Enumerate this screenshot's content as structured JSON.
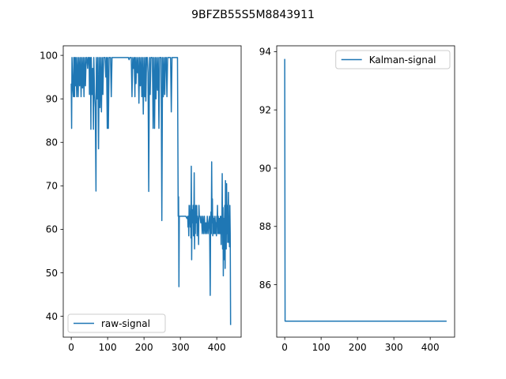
{
  "figure": {
    "title": "9BFZB55S5M8843911"
  },
  "chart_data": [
    {
      "type": "line",
      "xlim": [
        -22,
        467
      ],
      "ylim": [
        35.2,
        102.2
      ],
      "xticks": [
        0,
        100,
        200,
        300,
        400
      ],
      "yticks": [
        40,
        50,
        60,
        70,
        80,
        90,
        100
      ],
      "legend_position": "lower-left",
      "series": [
        {
          "name": "raw-signal",
          "color": "#1f77b4",
          "points": [
            [
              0,
              93.5
            ],
            [
              1,
              83.2
            ],
            [
              2,
              99.5
            ],
            [
              4,
              93.0
            ],
            [
              6,
              90.5
            ],
            [
              7,
              99.5
            ],
            [
              9,
              90.5
            ],
            [
              10,
              99.5
            ],
            [
              12,
              93.0
            ],
            [
              13,
              99.5
            ],
            [
              15,
              90.5
            ],
            [
              17,
              99.5
            ],
            [
              19,
              90.5
            ],
            [
              21,
              99.5
            ],
            [
              23,
              93.0
            ],
            [
              25,
              99.5
            ],
            [
              27,
              90.5
            ],
            [
              29,
              99.5
            ],
            [
              31,
              92.5
            ],
            [
              33,
              99.5
            ],
            [
              35,
              90.5
            ],
            [
              37,
              99.5
            ],
            [
              39,
              93.0
            ],
            [
              41,
              99.5
            ],
            [
              43,
              99.5
            ],
            [
              45,
              97.0
            ],
            [
              47,
              99.5
            ],
            [
              49,
              99.5
            ],
            [
              50,
              91.0
            ],
            [
              52,
              99.5
            ],
            [
              53,
              96.0
            ],
            [
              54,
              83.0
            ],
            [
              55,
              99.5
            ],
            [
              57,
              91.0
            ],
            [
              59,
              97.0
            ],
            [
              61,
              83.0
            ],
            [
              62,
              99.5
            ],
            [
              64,
              91.5
            ],
            [
              66,
              88.0
            ],
            [
              68,
              68.8
            ],
            [
              69,
              99.5
            ],
            [
              71,
              90.0
            ],
            [
              73,
              99.5
            ],
            [
              75,
              78.5
            ],
            [
              77,
              99.5
            ],
            [
              79,
              88.0
            ],
            [
              81,
              99.5
            ],
            [
              83,
              87.0
            ],
            [
              85,
              99.5
            ],
            [
              87,
              91.0
            ],
            [
              89,
              99.5
            ],
            [
              91,
              99.5
            ],
            [
              93,
              99.5
            ],
            [
              95,
              95.0
            ],
            [
              97,
              99.5
            ],
            [
              99,
              83.2
            ],
            [
              100,
              99.5
            ],
            [
              102,
              83.2
            ],
            [
              104,
              99.5
            ],
            [
              106,
              99.5
            ],
            [
              108,
              99.5
            ],
            [
              110,
              90.5
            ],
            [
              112,
              99.5
            ],
            [
              115,
              99.5
            ],
            [
              118,
              99.5
            ],
            [
              121,
              99.5
            ],
            [
              124,
              99.5
            ],
            [
              127,
              99.5
            ],
            [
              130,
              99.5
            ],
            [
              133,
              99.5
            ],
            [
              136,
              99.5
            ],
            [
              139,
              99.5
            ],
            [
              142,
              99.5
            ],
            [
              145,
              99.5
            ],
            [
              148,
              99.5
            ],
            [
              151,
              99.5
            ],
            [
              154,
              99.5
            ],
            [
              157,
              99.5
            ],
            [
              159,
              99.0
            ],
            [
              161,
              99.5
            ],
            [
              163,
              99.5
            ],
            [
              165,
              99.5
            ],
            [
              167,
              90.5
            ],
            [
              169,
              99.5
            ],
            [
              171,
              97.0
            ],
            [
              173,
              99.5
            ],
            [
              175,
              90.5
            ],
            [
              176,
              99.5
            ],
            [
              178,
              93.5
            ],
            [
              180,
              99.5
            ],
            [
              182,
              96.0
            ],
            [
              184,
              99.5
            ],
            [
              186,
              89.0
            ],
            [
              188,
              99.5
            ],
            [
              190,
              93.0
            ],
            [
              192,
              99.5
            ],
            [
              194,
              90.5
            ],
            [
              196,
              99.5
            ],
            [
              198,
              86.5
            ],
            [
              200,
              99.5
            ],
            [
              202,
              90.5
            ],
            [
              204,
              99.5
            ],
            [
              205,
              89.5
            ],
            [
              207,
              99.5
            ],
            [
              209,
              99.5
            ],
            [
              211,
              96.0
            ],
            [
              213,
              68.7
            ],
            [
              215,
              99.5
            ],
            [
              217,
              91.0
            ],
            [
              219,
              99.5
            ],
            [
              221,
              99.5
            ],
            [
              223,
              99.5
            ],
            [
              225,
              83.2
            ],
            [
              227,
              99.5
            ],
            [
              229,
              83.2
            ],
            [
              231,
              99.5
            ],
            [
              233,
              90.0
            ],
            [
              235,
              99.5
            ],
            [
              237,
              92.0
            ],
            [
              239,
              99.5
            ],
            [
              241,
              83.2
            ],
            [
              243,
              99.5
            ],
            [
              245,
              99.5
            ],
            [
              247,
              99.5
            ],
            [
              249,
              62.0
            ],
            [
              251,
              99.5
            ],
            [
              253,
              90.5
            ],
            [
              255,
              99.5
            ],
            [
              257,
              91.0
            ],
            [
              259,
              99.5
            ],
            [
              261,
              99.5
            ],
            [
              263,
              90.5
            ],
            [
              265,
              99.5
            ],
            [
              267,
              99.5
            ],
            [
              269,
              99.5
            ],
            [
              271,
              99.5
            ],
            [
              273,
              99.5
            ],
            [
              275,
              87.0
            ],
            [
              277,
              99.5
            ],
            [
              280,
              99.5
            ],
            [
              283,
              99.5
            ],
            [
              286,
              99.5
            ],
            [
              289,
              99.5
            ],
            [
              292,
              99.5
            ],
            [
              294,
              63.0
            ],
            [
              295,
              67.5
            ],
            [
              296,
              46.8
            ],
            [
              297,
              63.0
            ],
            [
              300,
              63.0
            ],
            [
              303,
              63.0
            ],
            [
              306,
              63.0
            ],
            [
              309,
              63.0
            ],
            [
              312,
              63.0
            ],
            [
              315,
              63.0
            ],
            [
              318,
              62.5
            ],
            [
              320,
              63.0
            ],
            [
              321,
              60.5
            ],
            [
              322,
              63.0
            ],
            [
              323,
              58.5
            ],
            [
              324,
              65.5
            ],
            [
              325,
              62.5
            ],
            [
              326,
              63.0
            ],
            [
              327,
              60.5
            ],
            [
              328,
              65.5
            ],
            [
              329,
              58.0
            ],
            [
              330,
              74.5
            ],
            [
              331,
              53.0
            ],
            [
              332,
              63.0
            ],
            [
              333,
              64.5
            ],
            [
              334,
              61.5
            ],
            [
              335,
              65.5
            ],
            [
              336,
              58.5
            ],
            [
              337,
              62.5
            ],
            [
              338,
              73.0
            ],
            [
              339,
              55.5
            ],
            [
              340,
              63.0
            ],
            [
              341,
              59.0
            ],
            [
              342,
              65.5
            ],
            [
              343,
              61.5
            ],
            [
              344,
              62.5
            ],
            [
              345,
              65.5
            ],
            [
              346,
              58.5
            ],
            [
              347,
              63.0
            ],
            [
              348,
              60.5
            ],
            [
              349,
              62.5
            ],
            [
              350,
              56.5
            ],
            [
              351,
              65.5
            ],
            [
              352,
              63.0
            ],
            [
              354,
              63.0
            ],
            [
              356,
              61.5
            ],
            [
              358,
              63.0
            ],
            [
              360,
              59.0
            ],
            [
              362,
              63.0
            ],
            [
              364,
              59.0
            ],
            [
              366,
              63.0
            ],
            [
              368,
              59.0
            ],
            [
              370,
              61.5
            ],
            [
              372,
              59.0
            ],
            [
              374,
              63.0
            ],
            [
              376,
              59.0
            ],
            [
              378,
              61.5
            ],
            [
              380,
              63.0
            ],
            [
              382,
              44.8
            ],
            [
              383,
              61.5
            ],
            [
              384,
              64.0
            ],
            [
              385,
              59.0
            ],
            [
              386,
              75.5
            ],
            [
              387,
              61.5
            ],
            [
              388,
              67.0
            ],
            [
              389,
              58.5
            ],
            [
              390,
              63.0
            ],
            [
              391,
              59.0
            ],
            [
              392,
              62.5
            ],
            [
              393,
              61.5
            ],
            [
              394,
              59.0
            ],
            [
              395,
              63.0
            ],
            [
              396,
              61.5
            ],
            [
              397,
              59.0
            ],
            [
              398,
              61.5
            ],
            [
              399,
              58.5
            ],
            [
              400,
              63.0
            ],
            [
              401,
              61.5
            ],
            [
              402,
              65.5
            ],
            [
              403,
              59.0
            ],
            [
              404,
              63.0
            ],
            [
              405,
              61.5
            ],
            [
              406,
              59.0
            ],
            [
              407,
              62.5
            ],
            [
              408,
              61.5
            ],
            [
              409,
              59.0
            ],
            [
              410,
              63.0
            ],
            [
              411,
              61.5
            ],
            [
              412,
              56.5
            ],
            [
              413,
              63.0
            ],
            [
              414,
              59.0
            ],
            [
              415,
              72.8
            ],
            [
              416,
              55.5
            ],
            [
              417,
              65.0
            ],
            [
              418,
              49.3
            ],
            [
              419,
              62.5
            ],
            [
              420,
              53.0
            ],
            [
              421,
              61.0
            ],
            [
              422,
              65.5
            ],
            [
              423,
              51.0
            ],
            [
              424,
              71.2
            ],
            [
              425,
              60.5
            ],
            [
              426,
              55.5
            ],
            [
              427,
              70.5
            ],
            [
              428,
              59.0
            ],
            [
              429,
              65.5
            ],
            [
              430,
              57.0
            ],
            [
              431,
              63.0
            ],
            [
              432,
              68.5
            ],
            [
              433,
              57.0
            ],
            [
              434,
              63.0
            ],
            [
              435,
              56.0
            ],
            [
              436,
              65.5
            ],
            [
              437,
              59.0
            ],
            [
              438,
              38.0
            ]
          ]
        }
      ]
    },
    {
      "type": "line",
      "xlim": [
        -22,
        467
      ],
      "ylim": [
        84.2,
        94.2
      ],
      "xticks": [
        0,
        100,
        200,
        300,
        400
      ],
      "yticks": [
        86,
        88,
        90,
        92,
        94
      ],
      "legend_position": "upper-right",
      "series": [
        {
          "name": "Kalman-signal",
          "color": "#1f77b4",
          "points": [
            [
              0,
              93.75
            ],
            [
              1,
              84.75
            ],
            [
              445,
              84.75
            ]
          ]
        }
      ]
    }
  ]
}
